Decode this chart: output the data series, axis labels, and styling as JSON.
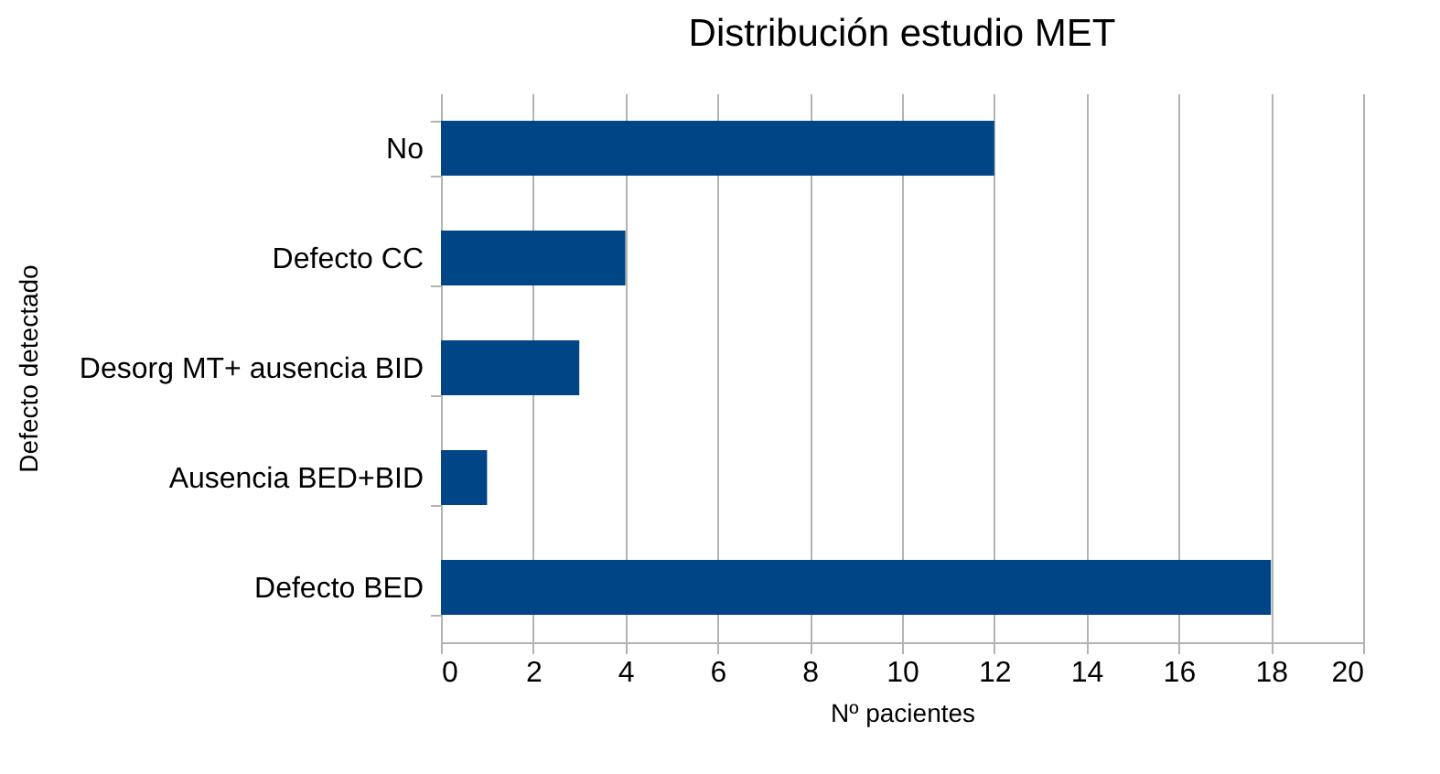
{
  "chart_data": {
    "type": "bar",
    "orientation": "horizontal",
    "title": "Distribución estudio MET",
    "xlabel": "Nº pacientes",
    "ylabel": "Defecto detectado",
    "categories": [
      "No",
      "Defecto CC",
      "Desorg MT+ ausencia BID",
      "Ausencia BED+BID",
      "Defecto BED"
    ],
    "values": [
      12,
      4,
      3,
      1,
      18
    ],
    "color": "#004586",
    "xlim": [
      0,
      20
    ],
    "xticks": [
      0,
      2,
      4,
      6,
      8,
      10,
      12,
      14,
      16,
      18,
      20
    ],
    "grid": "x"
  }
}
